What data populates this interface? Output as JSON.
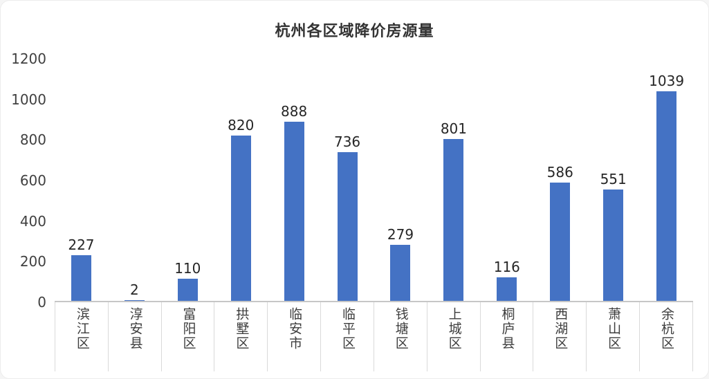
{
  "chart_data": {
    "type": "bar",
    "title": "杭州各区域降价房源量",
    "categories": [
      "滨江区",
      "淳安县",
      "富阳区",
      "拱墅区",
      "临安市",
      "临平区",
      "钱塘区",
      "上城区",
      "桐庐县",
      "西湖区",
      "萧山区",
      "余杭区"
    ],
    "values": [
      227,
      2,
      110,
      820,
      888,
      736,
      279,
      801,
      116,
      586,
      551,
      1039
    ],
    "xlabel": "",
    "ylabel": "",
    "ylim": [
      0,
      1200
    ],
    "yticks": [
      0,
      200,
      400,
      600,
      800,
      1000,
      1200
    ],
    "grid": false,
    "legend": false,
    "value_labels": true,
    "bar_color": "#4472c4",
    "axis_line_color": "#c6c6c6",
    "tick_line_color": "#d9d9d9",
    "text_color": "#404040"
  }
}
